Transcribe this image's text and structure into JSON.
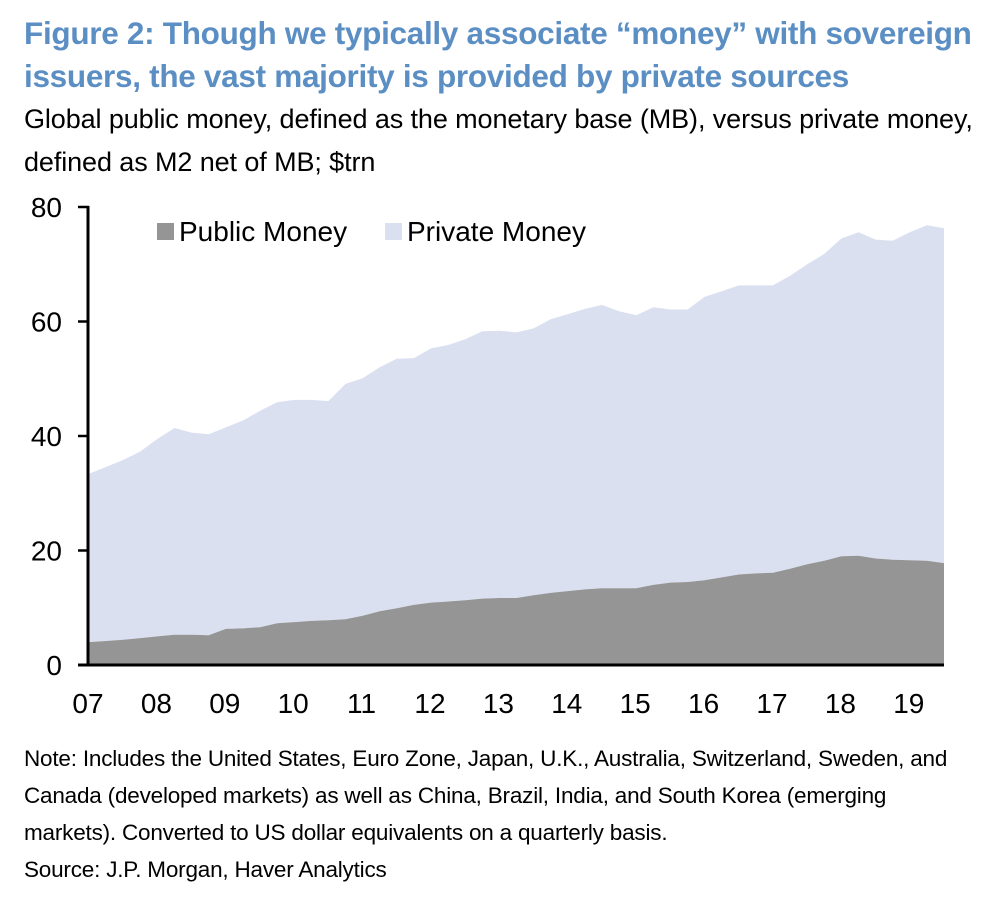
{
  "header": {
    "title": "Figure 2: Though we typically associate “money” with sovereign issuers, the vast majority is provided by private sources",
    "subtitle": "Global public money, defined as the monetary base (MB), versus private money, defined as M2 net of MB; $trn"
  },
  "footer": {
    "note": "Note: Includes the United States, Euro Zone, Japan, U.K., Australia, Switzerland, Sweden, and Canada (developed markets) as well as China, Brazil, India, and South Korea (emerging markets). Converted to US dollar equivalents on a quarterly basis.",
    "source": "Source: J.P. Morgan, Haver Analytics"
  },
  "colors": {
    "title": "#5b8fc4",
    "public": "#959595",
    "private": "#dae0ef"
  },
  "chart_data": {
    "type": "area",
    "stacked": true,
    "title": "Figure 2: Though we typically associate “money” with sovereign issuers, the vast majority is provided by private sources",
    "subtitle": "Global public money, defined as the monetary base (MB), versus private money, defined as M2 net of MB; $trn",
    "xlabel": "",
    "ylabel": "$trn",
    "frequency": "quarterly",
    "x_start": "2007Q1",
    "x_end": "2019Q3",
    "x_tick_labels": [
      "07",
      "08",
      "09",
      "10",
      "11",
      "12",
      "13",
      "14",
      "15",
      "16",
      "17",
      "18",
      "19"
    ],
    "y_tick_labels": [
      "0",
      "20",
      "40",
      "60",
      "80"
    ],
    "ylim": [
      0,
      80
    ],
    "grid": false,
    "legend": {
      "placement": "top-left",
      "entries": [
        "Public Money",
        "Private Money"
      ]
    },
    "series": [
      {
        "name": "Public Money",
        "values": [
          4.0,
          4.2,
          4.4,
          4.7,
          5.0,
          5.3,
          5.3,
          5.2,
          6.3,
          6.4,
          6.6,
          7.3,
          7.5,
          7.7,
          7.8,
          8.0,
          8.6,
          9.4,
          9.9,
          10.5,
          10.9,
          11.1,
          11.3,
          11.6,
          11.7,
          11.7,
          12.2,
          12.6,
          12.9,
          13.2,
          13.4,
          13.4,
          13.4,
          14.0,
          14.4,
          14.5,
          14.8,
          15.3,
          15.8,
          16.0,
          16.1,
          16.8,
          17.6,
          18.2,
          19.0,
          19.1,
          18.6,
          18.4,
          18.3,
          18.2,
          17.8
        ]
      },
      {
        "name": "Private Money",
        "values": [
          29.4,
          30.4,
          31.4,
          32.6,
          34.5,
          36.1,
          35.3,
          35.1,
          35.2,
          36.3,
          37.8,
          38.6,
          38.8,
          38.6,
          38.3,
          41.1,
          41.5,
          42.6,
          43.6,
          43.1,
          44.4,
          44.8,
          45.6,
          46.7,
          46.7,
          46.4,
          46.6,
          47.8,
          48.4,
          49.0,
          49.5,
          48.4,
          47.7,
          48.5,
          47.7,
          47.6,
          49.5,
          50.0,
          50.5,
          50.3,
          50.2,
          51.2,
          52.4,
          53.6,
          55.5,
          56.5,
          55.7,
          55.7,
          57.3,
          58.6,
          58.5
        ]
      }
    ]
  }
}
